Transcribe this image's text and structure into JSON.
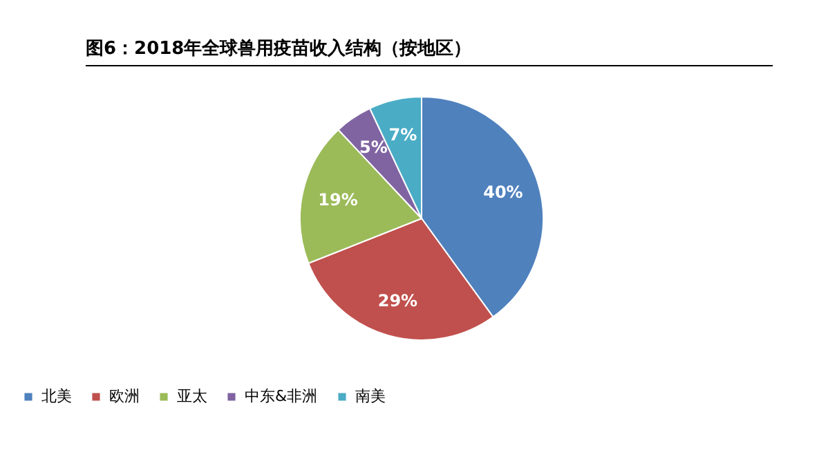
{
  "chart_data": {
    "type": "pie",
    "title": "图6：2018年全球兽用疫苗收入结构（按地区）",
    "categories": [
      "北美",
      "欧洲",
      "亚太",
      "中东&非洲",
      "南美"
    ],
    "values": [
      40,
      29,
      19,
      5,
      7
    ],
    "colors": [
      "#4f81bd",
      "#c0504d",
      "#9bbb59",
      "#8064a2",
      "#4bacc6"
    ],
    "value_labels": [
      "40%",
      "29%",
      "19%",
      "5%",
      "7%"
    ],
    "legend": "bottom"
  }
}
